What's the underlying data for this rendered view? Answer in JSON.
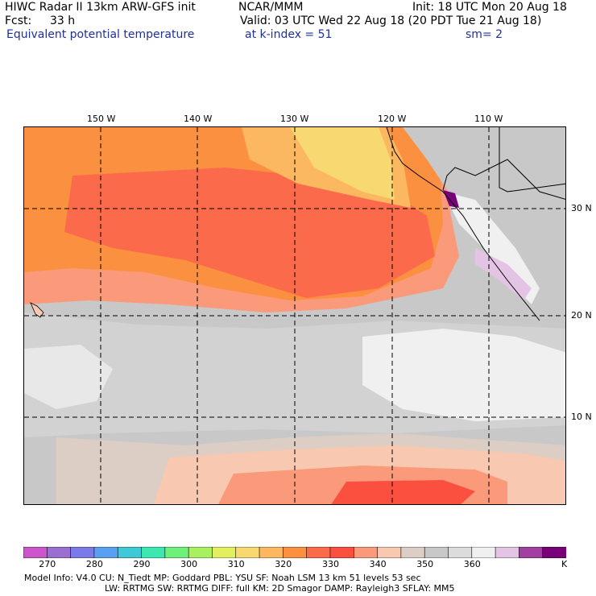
{
  "header": {
    "title": "HIWC Radar II 13km ARW-GFS init",
    "org": "NCAR/MMM",
    "init": "Init: 18 UTC Mon 20 Aug 18",
    "fcst_label": "Fcst:",
    "fcst_value": "33 h",
    "valid": "Valid: 03 UTC Wed 22 Aug 18 (20 PDT Tue 21 Aug 18)",
    "field": "Equivalent potential temperature",
    "level": "at k-index =  51",
    "smooth": "sm= 2"
  },
  "map": {
    "lon_labels": [
      "150 W",
      "140 W",
      "130 W",
      "120 W",
      "110 W"
    ],
    "lat_labels": [
      "30 N",
      "20 N",
      "10 N"
    ]
  },
  "colorbar": {
    "colors": [
      "#cc55cc",
      "#9b6fd0",
      "#7b7be8",
      "#5aa0f0",
      "#3ec8d8",
      "#3ce8b0",
      "#6ef07a",
      "#a8f060",
      "#e2f060",
      "#f8d870",
      "#fbb860",
      "#fb9040",
      "#fb6a4a",
      "#fb5040",
      "#fb9a7a",
      "#f8c8b0",
      "#dccec4",
      "#c8c8c8",
      "#dcdcdc",
      "#f0f0f0",
      "#e4c4e4",
      "#a040a0",
      "#780078"
    ],
    "ticks": [
      "270",
      "280",
      "290",
      "300",
      "310",
      "320",
      "330",
      "340",
      "350",
      "360"
    ],
    "unit": "K"
  },
  "footer": {
    "line1": "Model Info: V4.0      CU: N_Tiedt  MP: Goddard     PBL: YSU       SF: Noah LSM      13 km    51 levels    53 sec",
    "line2": "LW: RRTMG    SW: RRTMG   DIFF: full    KM: 2D Smagor DAMP: Rayleigh3   SFLAY: MM5"
  }
}
